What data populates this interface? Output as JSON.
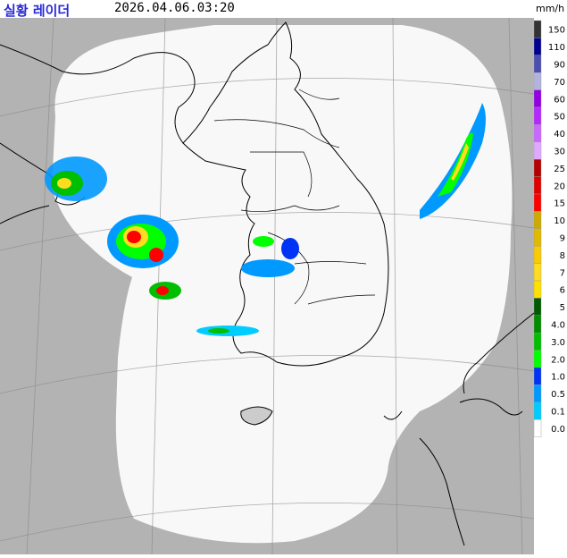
{
  "header": {
    "title": "실황 레이더",
    "timestamp": "2026.04.06.03:20",
    "unit": "mm/h"
  },
  "legend": {
    "items": [
      {
        "label": "150",
        "color": "#333333"
      },
      {
        "label": "110",
        "color": "#000390"
      },
      {
        "label": "90",
        "color": "#4c4eb1"
      },
      {
        "label": "70",
        "color": "#b3b4de"
      },
      {
        "label": "60",
        "color": "#9300e4"
      },
      {
        "label": "50",
        "color": "#b329ff"
      },
      {
        "label": "40",
        "color": "#c969ff"
      },
      {
        "label": "30",
        "color": "#e0a9ff"
      },
      {
        "label": "25",
        "color": "#b40000"
      },
      {
        "label": "20",
        "color": "#e00000"
      },
      {
        "label": "15",
        "color": "#fe0000"
      },
      {
        "label": "10",
        "color": "#ccaa00"
      },
      {
        "label": "9",
        "color": "#e0b900"
      },
      {
        "label": "8",
        "color": "#f9cb00"
      },
      {
        "label": "7",
        "color": "#ffdc1f"
      },
      {
        "label": "6",
        "color": "#ffe100"
      },
      {
        "label": "5",
        "color": "#005a00"
      },
      {
        "label": "4.0",
        "color": "#008c00"
      },
      {
        "label": "3.0",
        "color": "#00be00"
      },
      {
        "label": "2.0",
        "color": "#00ff00"
      },
      {
        "label": "1.0",
        "color": "#0033f5"
      },
      {
        "label": "0.5",
        "color": "#0099ff"
      },
      {
        "label": "0.1",
        "color": "#00ccff"
      },
      {
        "label": "0.0",
        "color": "#ffffff"
      }
    ]
  },
  "colors": {
    "outside_coverage": "#b3b3b3",
    "coverage": "#f8f8f8",
    "boundary": "#000000"
  }
}
